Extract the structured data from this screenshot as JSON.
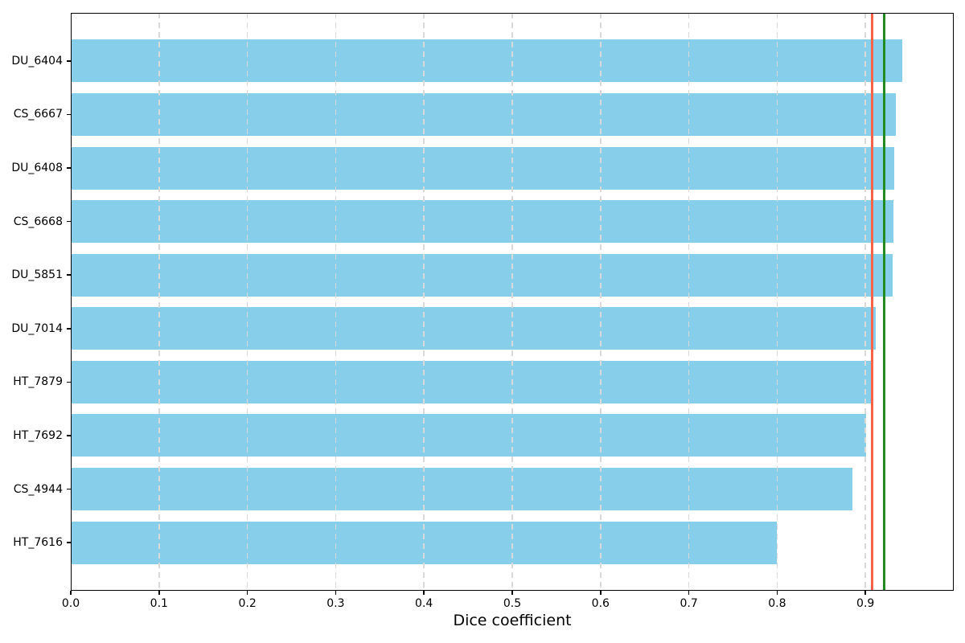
{
  "chart_data": {
    "type": "bar",
    "orientation": "horizontal",
    "title": "",
    "xlabel": "Dice coefficient",
    "ylabel": "",
    "categories": [
      "DU_6404",
      "CS_6667",
      "DU_6408",
      "CS_6668",
      "DU_5851",
      "DU_7014",
      "HT_7879",
      "HT_7692",
      "CS_4944",
      "HT_7616"
    ],
    "values": [
      0.942,
      0.934,
      0.933,
      0.932,
      0.931,
      0.912,
      0.907,
      0.901,
      0.885,
      0.8
    ],
    "xlim": [
      0,
      1.0
    ],
    "xticks": [
      0.0,
      0.1,
      0.2,
      0.3,
      0.4,
      0.5,
      0.6,
      0.7,
      0.8,
      0.9
    ],
    "xtick_labels": [
      "0.0",
      "0.1",
      "0.2",
      "0.3",
      "0.4",
      "0.5",
      "0.6",
      "0.7",
      "0.8",
      "0.9"
    ],
    "grid": "vertical-dashed",
    "legend_position": "none",
    "bar_color": "#87CEEB",
    "reference_lines": [
      {
        "name": "red-line",
        "value": 0.908,
        "color": "#FF6347"
      },
      {
        "name": "green-line",
        "value": 0.9215,
        "color": "#228B22"
      }
    ]
  },
  "colors": {
    "background": "#FFFFFF",
    "spine": "#000000",
    "grid": "#D9D9D9",
    "text": "#000000"
  }
}
